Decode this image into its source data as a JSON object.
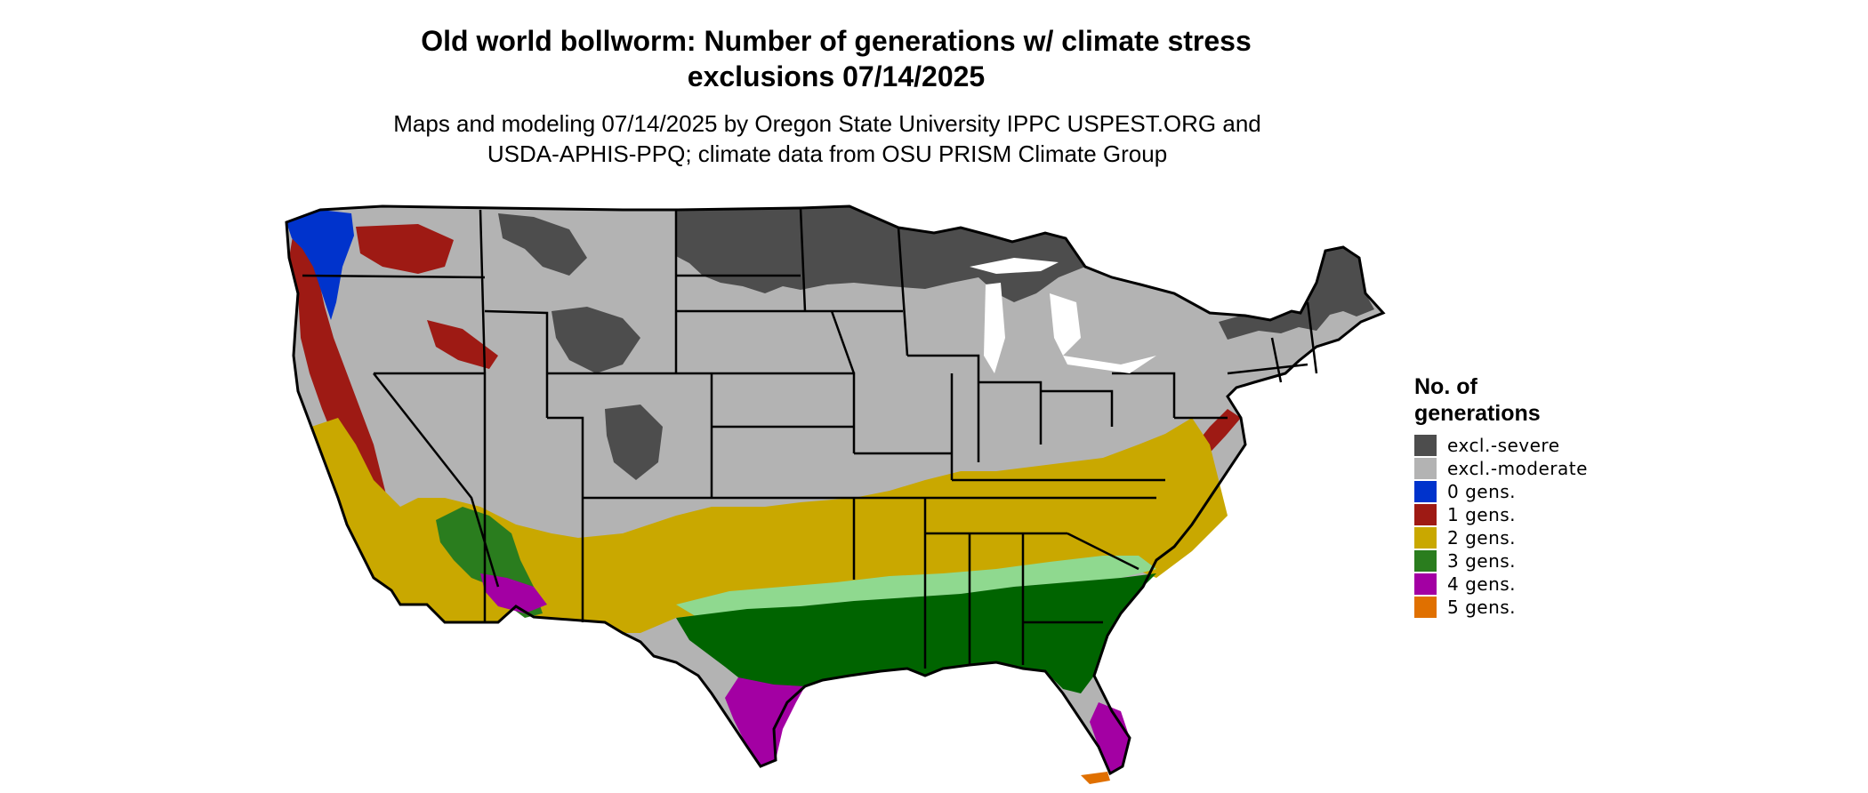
{
  "title": {
    "line1": "Old world bollworm: Number of generations w/ climate stress",
    "line2": "exclusions 07/14/2025"
  },
  "subtitle": {
    "line1": "Maps and modeling 07/14/2025 by Oregon State University IPPC USPEST.ORG and",
    "line2": "USDA-APHIS-PPQ; climate data from OSU PRISM Climate Group"
  },
  "legend": {
    "title_line1": "No. of",
    "title_line2": "generations",
    "items": [
      {
        "label": "excl.-severe",
        "color": "#4d4d4d"
      },
      {
        "label": "excl.-moderate",
        "color": "#b3b3b3"
      },
      {
        "label": "0 gens.",
        "color": "#0033cc"
      },
      {
        "label": "1 gens.",
        "color": "#9e1a14"
      },
      {
        "label": "2 gens.",
        "color": "#c9a800"
      },
      {
        "label": "3 gens.",
        "color": "#2a7d1e"
      },
      {
        "label": "4 gens.",
        "color": "#a300a3"
      },
      {
        "label": "5 gens.",
        "color": "#e07000"
      }
    ]
  },
  "map_colors": {
    "state_border": "#000000",
    "dark_green": "#006400",
    "light_green": "#8fd98f"
  }
}
